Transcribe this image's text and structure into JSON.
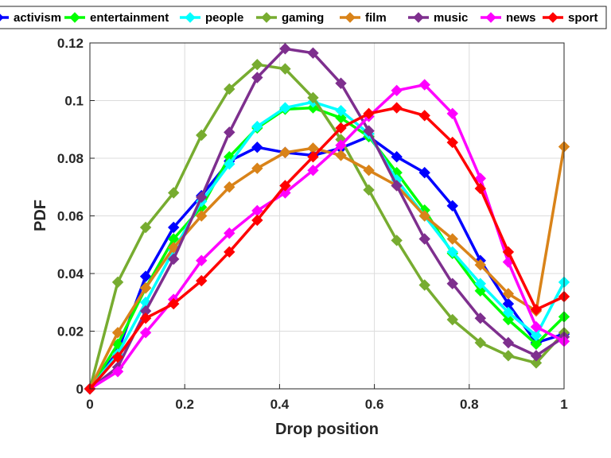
{
  "chart_data": {
    "type": "line",
    "xlabel": "Drop position",
    "ylabel": "PDF",
    "xlim": [
      0,
      1
    ],
    "ylim": [
      0,
      0.12
    ],
    "xticks": [
      "0",
      "0.2",
      "0.4",
      "0.6",
      "0.8",
      "1"
    ],
    "yticks": [
      "0",
      "0.02",
      "0.04",
      "0.06",
      "0.08",
      "0.1",
      "0.12"
    ],
    "grid": true,
    "legend_position": "top",
    "x": [
      0,
      0.0588,
      0.1176,
      0.1765,
      0.2353,
      0.2941,
      0.3529,
      0.4118,
      0.4706,
      0.5294,
      0.5882,
      0.6471,
      0.7059,
      0.7647,
      0.8235,
      0.8824,
      0.9412,
      1
    ],
    "series": [
      {
        "name": "activism",
        "color": "#0000ff",
        "values": [
          0,
          0.013,
          0.039,
          0.056,
          0.067,
          0.079,
          0.0838,
          0.082,
          0.081,
          0.0835,
          0.0875,
          0.0805,
          0.075,
          0.0635,
          0.0445,
          0.0295,
          0.016,
          0.019
        ]
      },
      {
        "name": "entertainment",
        "color": "#00ff00",
        "values": [
          0,
          0.0155,
          0.035,
          0.052,
          0.063,
          0.0805,
          0.0905,
          0.097,
          0.0975,
          0.094,
          0.0875,
          0.075,
          0.062,
          0.047,
          0.034,
          0.024,
          0.0155,
          0.025
        ]
      },
      {
        "name": "people",
        "color": "#00ffff",
        "values": [
          0,
          0.012,
          0.03,
          0.048,
          0.065,
          0.078,
          0.091,
          0.0975,
          0.0995,
          0.0965,
          0.0885,
          0.0725,
          0.06,
          0.0475,
          0.0365,
          0.0265,
          0.0185,
          0.037
        ]
      },
      {
        "name": "gaming",
        "color": "#77ac30",
        "values": [
          0,
          0.037,
          0.056,
          0.068,
          0.088,
          0.104,
          0.1125,
          0.111,
          0.101,
          0.0865,
          0.069,
          0.0515,
          0.036,
          0.024,
          0.016,
          0.0115,
          0.009,
          0.0195
        ]
      },
      {
        "name": "film",
        "color": "#d98319",
        "values": [
          0,
          0.0195,
          0.035,
          0.049,
          0.06,
          0.07,
          0.0765,
          0.082,
          0.0835,
          0.081,
          0.0758,
          0.0705,
          0.06,
          0.052,
          0.043,
          0.033,
          0.027,
          0.084
        ]
      },
      {
        "name": "music",
        "color": "#7e2f8e",
        "values": [
          0,
          0.0075,
          0.027,
          0.045,
          0.0665,
          0.089,
          0.108,
          0.118,
          0.1165,
          0.106,
          0.0895,
          0.0705,
          0.052,
          0.0365,
          0.0245,
          0.016,
          0.0115,
          0.018
        ]
      },
      {
        "name": "news",
        "color": "#ff00ff",
        "values": [
          0,
          0.006,
          0.0195,
          0.031,
          0.0445,
          0.054,
          0.0618,
          0.068,
          0.0758,
          0.0845,
          0.0945,
          0.1035,
          0.1055,
          0.0955,
          0.073,
          0.044,
          0.0215,
          0.0165
        ]
      },
      {
        "name": "sport",
        "color": "#ff0000",
        "values": [
          0,
          0.011,
          0.0245,
          0.0295,
          0.0375,
          0.0475,
          0.0585,
          0.0705,
          0.0805,
          0.0905,
          0.0955,
          0.0975,
          0.0948,
          0.0855,
          0.0695,
          0.0475,
          0.0275,
          0.032
        ]
      }
    ]
  }
}
